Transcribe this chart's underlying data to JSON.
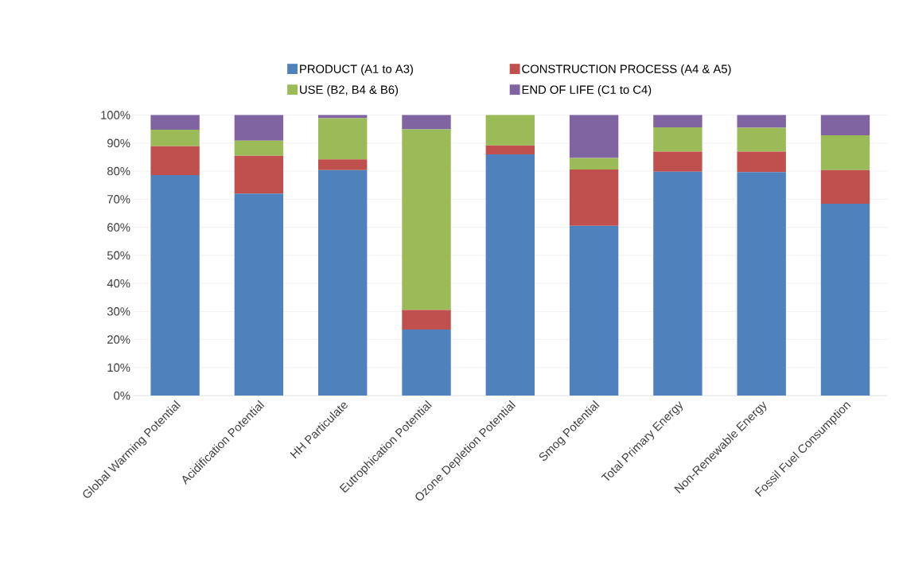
{
  "chart_data": {
    "type": "bar",
    "stacked": true,
    "categories": [
      "Global Warming Potential",
      "Acidification Potential",
      "HH Particulate",
      "Eutrophication Potential",
      "Ozone Depletion Potential",
      "Smog Potential",
      "Total Primary Energy",
      "Non-Renewable Energy",
      "Fossil Fuel Consumption"
    ],
    "series": [
      {
        "name": "PRODUCT (A1 to A3)",
        "color": "#4f81bd",
        "values": [
          78.6,
          72.0,
          80.4,
          23.6,
          86.0,
          60.5,
          79.8,
          79.7,
          68.4
        ]
      },
      {
        "name": "CONSTRUCTION PROCESS (A4 & A5)",
        "color": "#c0504d",
        "values": [
          10.3,
          13.5,
          3.8,
          6.9,
          3.2,
          20.1,
          7.2,
          7.3,
          12.0
        ]
      },
      {
        "name": "USE (B2, B4 & B6)",
        "color": "#9bbb59",
        "values": [
          5.9,
          5.4,
          14.7,
          64.4,
          10.8,
          4.1,
          8.6,
          8.5,
          12.4
        ]
      },
      {
        "name": "END OF LIFE (C1 to C4)",
        "color": "#8064a2",
        "values": [
          5.2,
          9.1,
          1.1,
          5.1,
          0,
          15.3,
          4.4,
          4.5,
          7.2
        ]
      }
    ],
    "ylim": [
      0,
      100
    ],
    "yticks": [
      {
        "value": 0,
        "label": "0%"
      },
      {
        "value": 10,
        "label": "10%"
      },
      {
        "value": 20,
        "label": "20%"
      },
      {
        "value": 30,
        "label": "30%"
      },
      {
        "value": 40,
        "label": "40%"
      },
      {
        "value": 50,
        "label": "50%"
      },
      {
        "value": 60,
        "label": "60%"
      },
      {
        "value": 70,
        "label": "70%"
      },
      {
        "value": 80,
        "label": "80%"
      },
      {
        "value": 90,
        "label": "90%"
      },
      {
        "value": 100,
        "label": "100%"
      }
    ],
    "grid": "y",
    "legend": "top"
  }
}
